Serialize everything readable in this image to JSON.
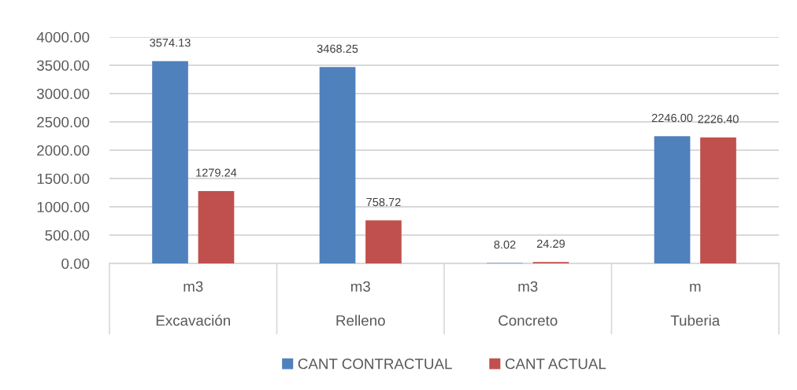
{
  "chart_data": {
    "type": "bar",
    "categories": [
      "m3\nExcavación",
      "m3\nRelleno",
      "m3\nConcreto",
      "m\nTuberia"
    ],
    "series": [
      {
        "name": "CANT CONTRACTUAL",
        "color": "#4f81bd",
        "values": [
          3574.13,
          3468.25,
          8.02,
          2246.0
        ],
        "value_labels": [
          "3574.13",
          "3468.25",
          "8.02",
          "2246.00"
        ]
      },
      {
        "name": "CANT ACTUAL",
        "color": "#c0504d",
        "values": [
          1279.24,
          758.72,
          24.29,
          2226.4
        ],
        "value_labels": [
          "1279.24",
          "758.72",
          "24.29",
          "2226.40"
        ]
      }
    ],
    "ylim": [
      0,
      4000
    ],
    "yticks": [
      {
        "value": 0,
        "label": "0.00"
      },
      {
        "value": 500,
        "label": "500.00"
      },
      {
        "value": 1000,
        "label": "1000.00"
      },
      {
        "value": 1500,
        "label": "1500.00"
      },
      {
        "value": 2000,
        "label": "2000.00"
      },
      {
        "value": 2500,
        "label": "2500.00"
      },
      {
        "value": 3000,
        "label": "3000.00"
      },
      {
        "value": 3500,
        "label": "3500.00"
      },
      {
        "value": 4000,
        "label": "4000.00"
      }
    ],
    "grid": "y",
    "legend": "bottom"
  }
}
